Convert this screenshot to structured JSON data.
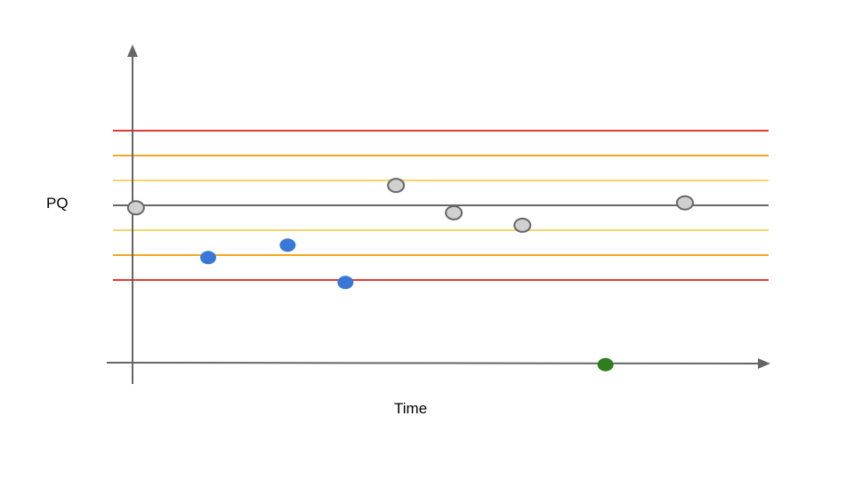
{
  "chart_data": {
    "type": "scatter",
    "title": "",
    "xlabel": "Time",
    "ylabel": "PQ",
    "xlim": [
      0,
      100
    ],
    "ylim": [
      -3,
      3
    ],
    "grid": false,
    "legend": "none",
    "reference_lines": [
      {
        "y": 1.5,
        "color": "#e53935",
        "role": "upper-outer"
      },
      {
        "y": 1.0,
        "color": "#f5a623",
        "role": "upper-middle"
      },
      {
        "y": 0.5,
        "color": "#fbd36b",
        "role": "upper-inner"
      },
      {
        "y": 0.0,
        "color": "#666666",
        "role": "center"
      },
      {
        "y": -0.5,
        "color": "#fbd36b",
        "role": "lower-inner"
      },
      {
        "y": -1.0,
        "color": "#f5a623",
        "role": "lower-middle"
      },
      {
        "y": -1.5,
        "color": "#e53935",
        "role": "lower-outer"
      }
    ],
    "points": [
      {
        "x": 7,
        "y": -0.05,
        "color": "#d0d0d0",
        "stroke": "#666666"
      },
      {
        "x": 17,
        "y": -1.05,
        "color": "#3a78d8",
        "stroke": "none"
      },
      {
        "x": 28,
        "y": -0.8,
        "color": "#3a78d8",
        "stroke": "none"
      },
      {
        "x": 36,
        "y": -1.55,
        "color": "#3a78d8",
        "stroke": "none"
      },
      {
        "x": 43,
        "y": 0.4,
        "color": "#d0d0d0",
        "stroke": "#666666"
      },
      {
        "x": 51,
        "y": -0.15,
        "color": "#d0d0d0",
        "stroke": "#666666"
      },
      {
        "x": 60.5,
        "y": -0.4,
        "color": "#d0d0d0",
        "stroke": "#666666"
      },
      {
        "x": 72,
        "y": -3.2,
        "color": "#2e7d1e",
        "stroke": "none"
      },
      {
        "x": 83,
        "y": 0.05,
        "color": "#d0d0d0",
        "stroke": "#666666"
      }
    ]
  }
}
